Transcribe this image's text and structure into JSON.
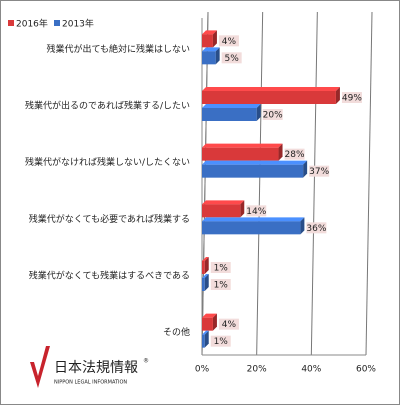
{
  "chart_data": {
    "type": "hbar",
    "categories": [
      "残業代が出ても絶対に残業はしない",
      "残業代が出るのであれば残業する/したい",
      "残業代がなければ残業しない/したくない",
      "残業代がなくても必要であれば残業する",
      "残業代がなくても残業はするべきである",
      "その他"
    ],
    "series": [
      {
        "name": "2016年",
        "color": "#d9393a",
        "values": [
          4,
          49,
          28,
          14,
          1,
          4
        ],
        "value_labels": [
          "4%",
          "49%",
          "28%",
          "14%",
          "1%",
          "4%"
        ]
      },
      {
        "name": "2013年",
        "color": "#3a6fc4",
        "values": [
          5,
          20,
          37,
          36,
          1,
          1
        ],
        "value_labels": [
          "5%",
          "20%",
          "37%",
          "36%",
          "1%",
          "1%"
        ]
      }
    ],
    "xlim": [
      0,
      60
    ],
    "xticks": [
      {
        "value": 0,
        "label": "0%"
      },
      {
        "value": 20,
        "label": "20%"
      },
      {
        "value": 40,
        "label": "40%"
      },
      {
        "value": 60,
        "label": "60%"
      }
    ],
    "grid": true,
    "legend": "top-left"
  },
  "logo": {
    "name": "日本法規情報",
    "mark": "®",
    "subtitle": "NIPPON LEGAL INFORMATION"
  }
}
